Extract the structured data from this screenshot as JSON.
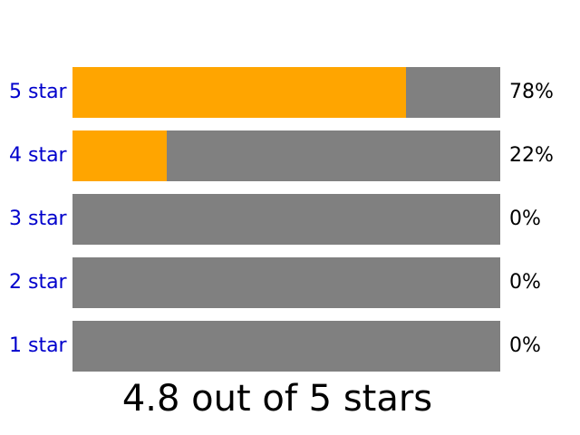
{
  "colors": {
    "fill": "#ffa500",
    "track": "#808080",
    "link": "#0000cc",
    "text": "#000000"
  },
  "rows": [
    {
      "label": "5 star",
      "percent_text": "78%",
      "fraction": 0.78
    },
    {
      "label": "4 star",
      "percent_text": "22%",
      "fraction": 0.22
    },
    {
      "label": "3 star",
      "percent_text": "0%",
      "fraction": 0
    },
    {
      "label": "2 star",
      "percent_text": "0%",
      "fraction": 0
    },
    {
      "label": "1 star",
      "percent_text": "0%",
      "fraction": 0
    }
  ],
  "summary": "4.8 out of 5 stars"
}
